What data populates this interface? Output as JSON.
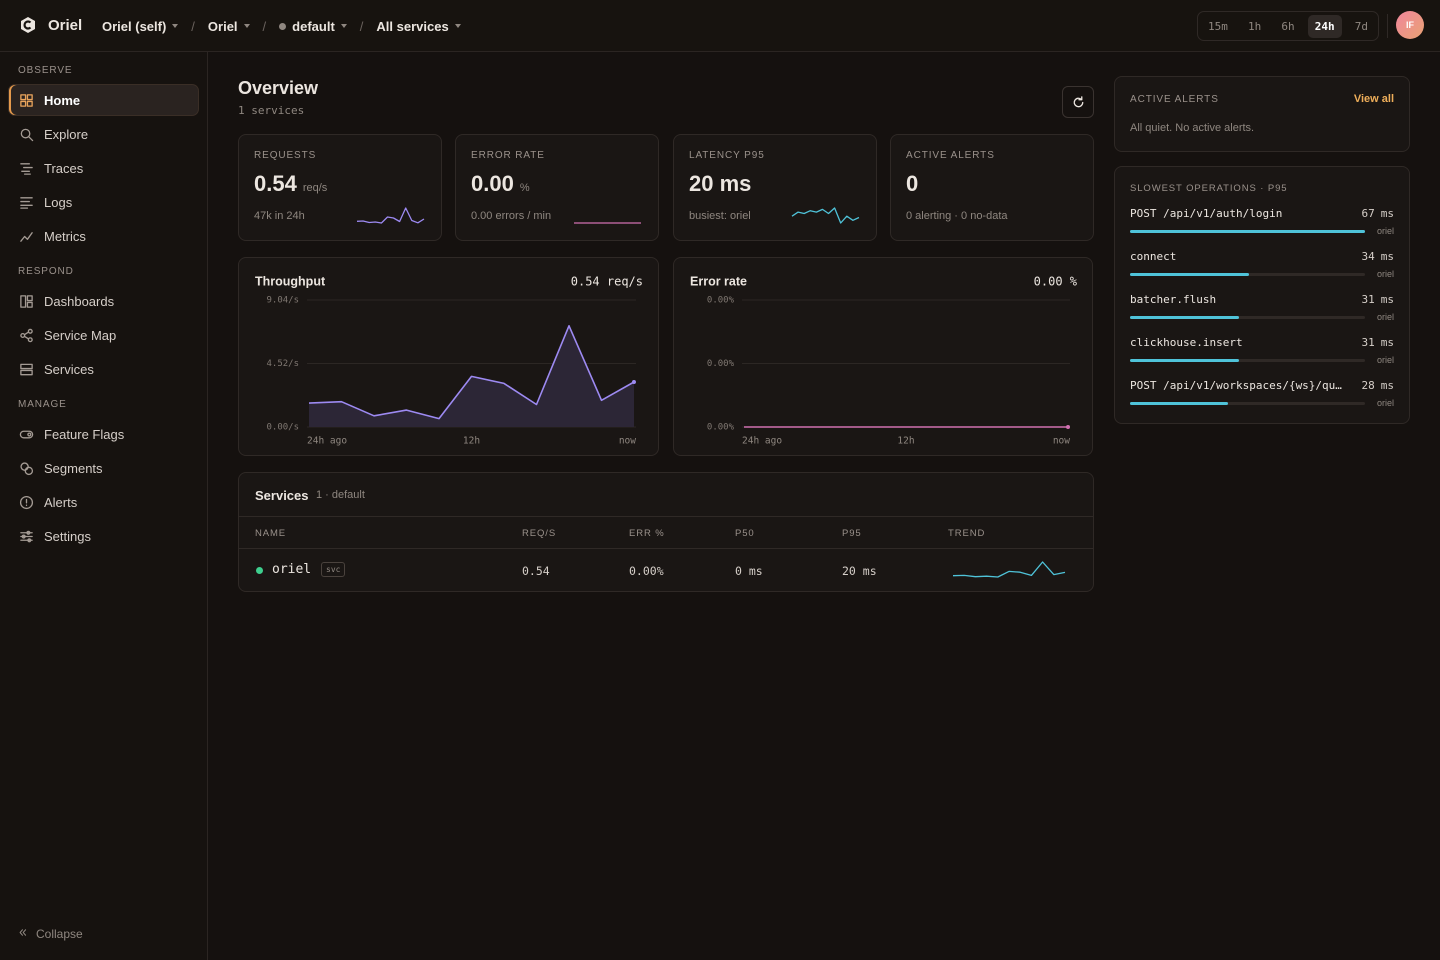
{
  "topbar": {
    "brand": "Oriel",
    "separator": "/",
    "breadcrumbs": [
      "Oriel (self)",
      "Oriel",
      "default",
      "All services"
    ],
    "time_ranges": [
      "15m",
      "1h",
      "6h",
      "24h",
      "7d"
    ],
    "active_range_index": 3,
    "avatar": "IF"
  },
  "sidebar": {
    "sections": [
      {
        "title": "OBSERVE",
        "items": [
          "Home",
          "Explore",
          "Traces",
          "Logs",
          "Metrics"
        ]
      },
      {
        "title": "RESPOND",
        "items": [
          "Dashboards",
          "Service Map",
          "Services"
        ]
      },
      {
        "title": "MANAGE",
        "items": [
          "Feature Flags",
          "Segments",
          "Alerts",
          "Settings"
        ]
      }
    ],
    "active_section": 0,
    "active_item": 0,
    "collapse": "Collapse"
  },
  "overview": {
    "title": "Overview",
    "subtitle": "1 services"
  },
  "stats": [
    {
      "label": "REQUESTS",
      "value": "0.54",
      "unit": "req/s",
      "footer": "47k in 24h",
      "spark": {
        "color": "#9d8af2",
        "values": [
          1.5,
          1.6,
          1.0,
          1.2,
          0.8,
          3.2,
          2.8,
          1.4,
          6.8,
          1.8,
          0.9,
          2.4
        ]
      }
    },
    {
      "label": "ERROR RATE",
      "value": "0.00",
      "unit": "%",
      "footer": "0.00 errors / min",
      "spark": {
        "color": "#d070b0",
        "values": [
          0,
          0,
          0,
          0,
          0,
          0,
          0,
          0,
          0,
          0,
          0,
          0
        ]
      }
    },
    {
      "label": "LATENCY P95",
      "value": "20 ms",
      "footer": "busiest: oriel",
      "spark": {
        "color": "#4fc3d9",
        "values": [
          14,
          17,
          16,
          18,
          17,
          19,
          16,
          20,
          9,
          14,
          11,
          13
        ]
      }
    },
    {
      "label": "ACTIVE ALERTS",
      "value": "0",
      "footer": "0 alerting · 0 no-data"
    }
  ],
  "charts": [
    {
      "type": "line",
      "title": "Throughput",
      "current": "0.54 req/s",
      "color": "#9d8af2",
      "fill": "#2c2636",
      "ylim": [
        0,
        9.04
      ],
      "yticks": [
        {
          "value": 9.04,
          "label": "9.04/s"
        },
        {
          "value": 4.52,
          "label": "4.52/s"
        },
        {
          "value": 0,
          "label": "0.00/s"
        }
      ],
      "x_labels": [
        "24h ago",
        "12h",
        "now"
      ],
      "values": [
        1.7,
        1.8,
        0.8,
        1.2,
        0.6,
        3.6,
        3.1,
        1.6,
        7.2,
        1.9,
        3.2
      ]
    },
    {
      "type": "line",
      "title": "Error rate",
      "current": "0.00 %",
      "color": "#d070b0",
      "fill": "none",
      "ylim": [
        0,
        0.004
      ],
      "yticks": [
        {
          "value": 0.004,
          "label": "0.00%"
        },
        {
          "value": 0.002,
          "label": "0.00%"
        },
        {
          "value": 0,
          "label": "0.00%"
        }
      ],
      "x_labels": [
        "24h ago",
        "12h",
        "now"
      ],
      "values": [
        0,
        0,
        0,
        0,
        0,
        0,
        0,
        0,
        0,
        0,
        0
      ]
    }
  ],
  "services": {
    "title": "Services",
    "meta": "1 · default",
    "columns": [
      "NAME",
      "REQ/S",
      "ERR %",
      "P50",
      "P95",
      "TREND"
    ],
    "rows": [
      {
        "status_color": "#3ecf8e",
        "name": "oriel",
        "badge": "svc",
        "cells": [
          "0.54",
          "0.00%",
          "0 ms",
          "20 ms"
        ],
        "trend": {
          "color": "#4fc3d9",
          "values": [
            1.4,
            1.5,
            1.0,
            1.2,
            0.9,
            3.0,
            2.7,
            1.5,
            6.5,
            1.8,
            2.6
          ]
        }
      }
    ]
  },
  "alerts": {
    "title": "ACTIVE ALERTS",
    "link": "View all",
    "empty": "All quiet. No active alerts."
  },
  "slowest": {
    "title": "SLOWEST OPERATIONS · P95",
    "unit": "ms",
    "color": "#4fc3d9",
    "items": [
      {
        "name": "POST /api/v1/auth/login",
        "value": 67,
        "service": "oriel"
      },
      {
        "name": "connect",
        "value": 34,
        "service": "oriel"
      },
      {
        "name": "batcher.flush",
        "value": 31,
        "service": "oriel"
      },
      {
        "name": "clickhouse.insert",
        "value": 31,
        "service": "oriel"
      },
      {
        "name": "POST /api/v1/workspaces/{ws}/qu…",
        "value": 28,
        "service": "oriel"
      }
    ]
  }
}
